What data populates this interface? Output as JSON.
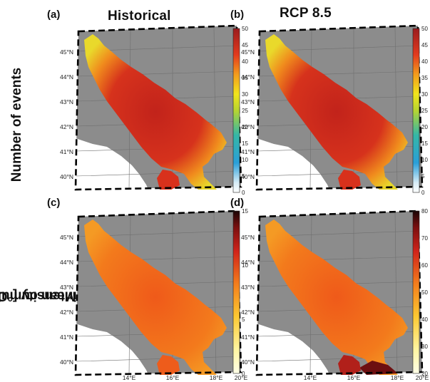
{
  "columns": [
    "Historical",
    "RCP 8.5"
  ],
  "rows": [
    "Number of events",
    "Mean cumulative intensity [°C day]"
  ],
  "row2_lines": [
    "Mean cumulative",
    "intensity [°C day]"
  ],
  "panels": [
    {
      "letter": "(a)",
      "colorbar": {
        "min": 0,
        "max": 50,
        "ticks": [
          "0",
          "5",
          "10",
          "15",
          "20",
          "25",
          "30",
          "35",
          "40",
          "45",
          "50"
        ],
        "colormap": "jet"
      }
    },
    {
      "letter": "(b)",
      "colorbar": {
        "min": 0,
        "max": 50,
        "ticks": [
          "0",
          "5",
          "10",
          "15",
          "20",
          "25",
          "30",
          "35",
          "40",
          "45",
          "50"
        ],
        "colormap": "jet"
      }
    },
    {
      "letter": "(c)",
      "colorbar": {
        "min": 0,
        "max": 15,
        "ticks": [
          "0",
          "5",
          "10",
          "15"
        ],
        "colormap": "hot"
      }
    },
    {
      "letter": "(d)",
      "colorbar": {
        "min": 20,
        "max": 80,
        "ticks": [
          "20",
          "30",
          "40",
          "50",
          "60",
          "70",
          "80"
        ],
        "colormap": "hot"
      }
    }
  ],
  "lat_labels": [
    "45°N",
    "44°N",
    "43°N",
    "42°N",
    "41°N",
    "40°N"
  ],
  "lon_labels": [
    "14°E",
    "16°E",
    "18°E",
    "20°E"
  ],
  "colors": {
    "land": "#8c8c8c",
    "outside": "#ffffff",
    "sea_top": "#d4281c",
    "sea_edge_top": "#f2d21e",
    "sea_bottom": "#f2671c"
  }
}
